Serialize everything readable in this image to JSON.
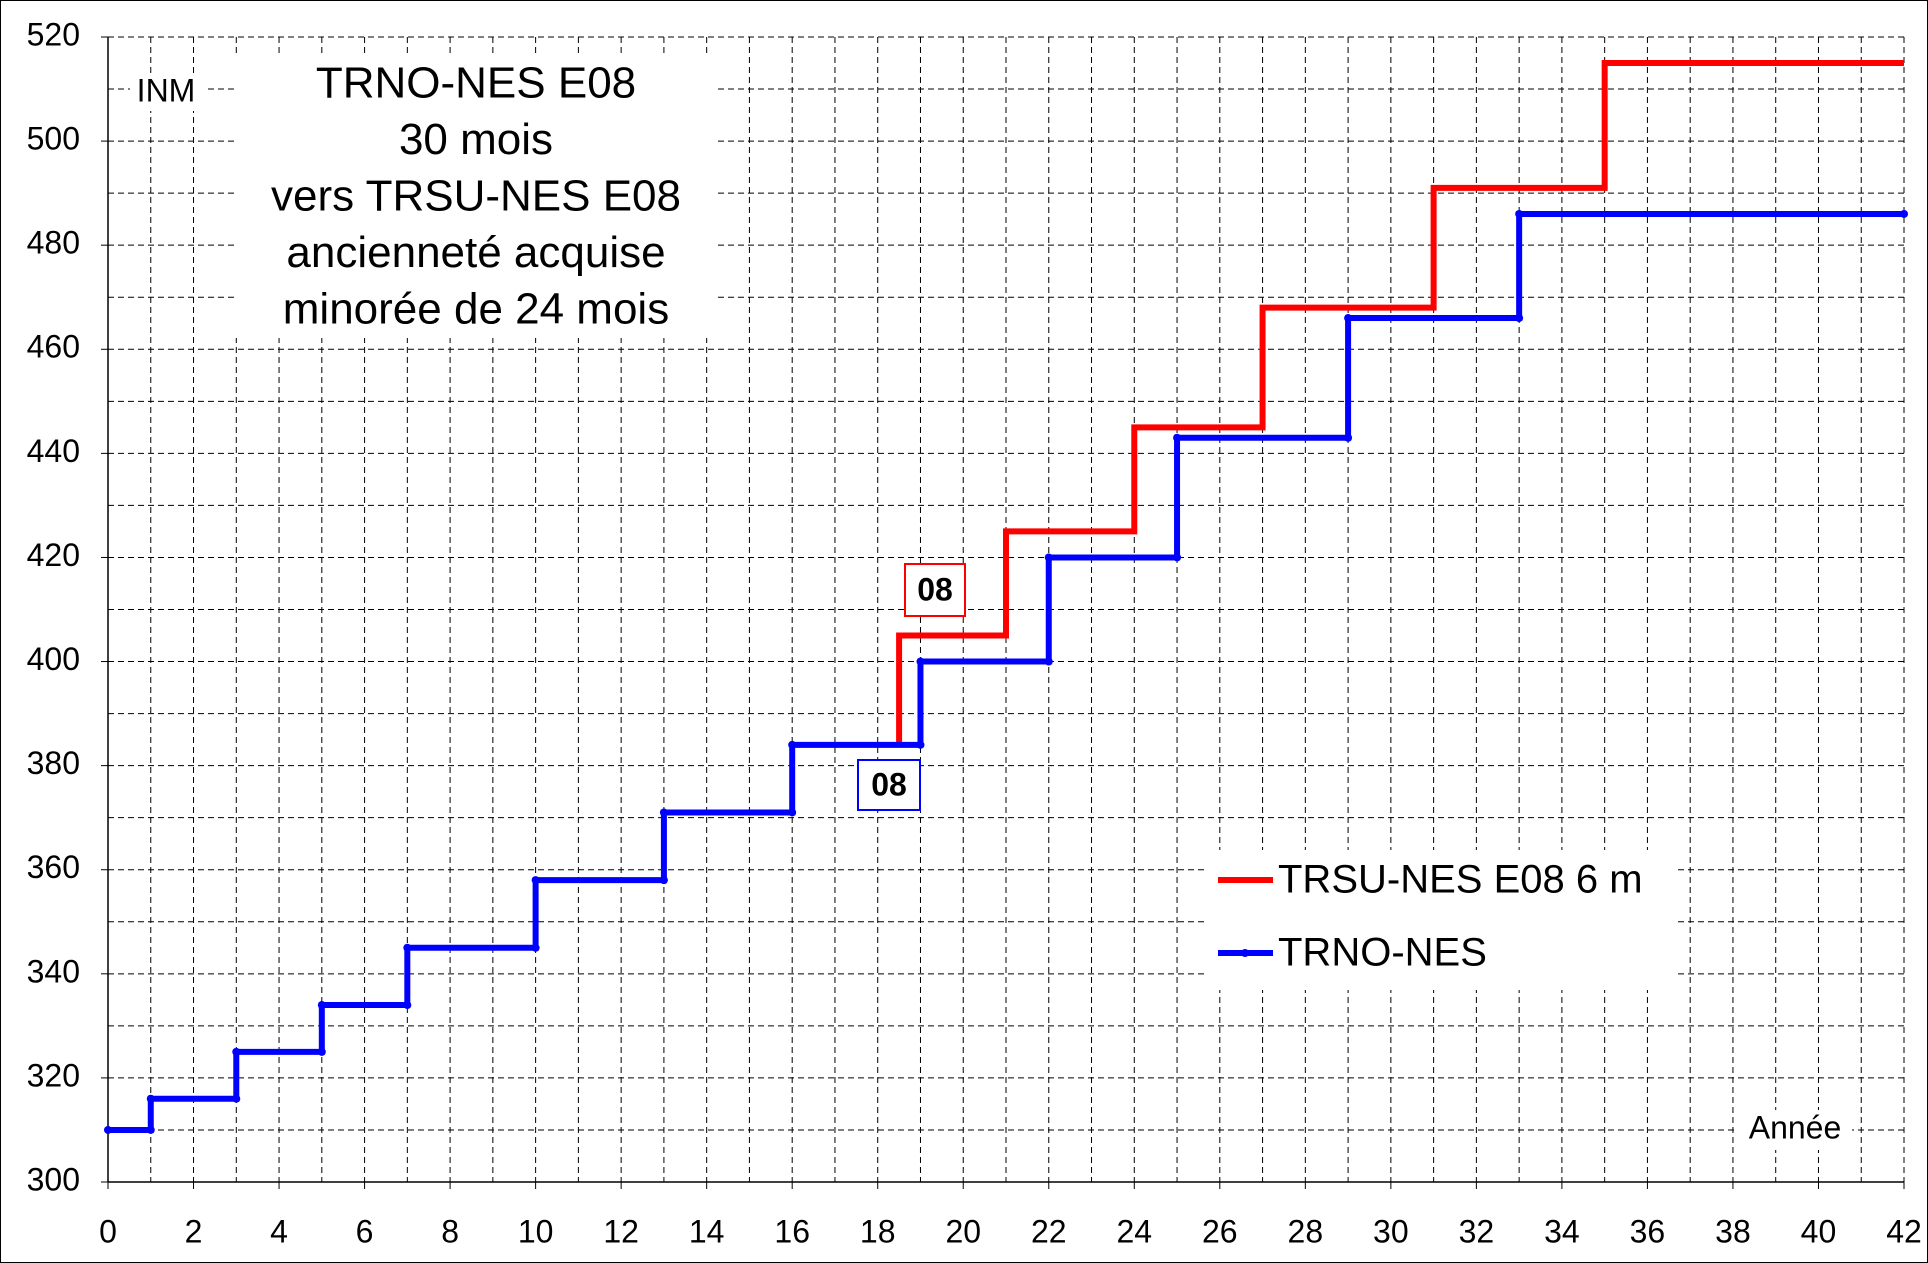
{
  "chart_data": {
    "type": "line",
    "step": true,
    "title": [
      "TRNO-NES E08",
      "30 mois",
      "vers TRSU-NES E08",
      "ancienneté acquise",
      "minorée de 24 mois"
    ],
    "ylabel": "INM",
    "xlabel": "Année",
    "annotations": [
      {
        "text": "08",
        "color": "#ff0000"
      },
      {
        "text": "08",
        "color": "#0000ff"
      }
    ],
    "series": [
      {
        "name": "TRSU-NES E08 6 m",
        "color": "#ff0000",
        "markers": false,
        "x": [
          18.5,
          18.5,
          21,
          21,
          24,
          24,
          27,
          27,
          31,
          31,
          35,
          35,
          42
        ],
        "values": [
          384,
          405,
          405,
          425,
          425,
          445,
          445,
          468,
          468,
          491,
          491,
          515,
          515
        ]
      },
      {
        "name": "TRNO-NES",
        "color": "#0000ff",
        "markers": true,
        "x": [
          0,
          1,
          1,
          3,
          3,
          5,
          5,
          7,
          7,
          10,
          10,
          13,
          13,
          16,
          16,
          19,
          19,
          22,
          22,
          25,
          25,
          29,
          29,
          33,
          33,
          42
        ],
        "values": [
          310,
          310,
          316,
          316,
          325,
          325,
          334,
          334,
          345,
          345,
          358,
          358,
          371,
          371,
          384,
          384,
          400,
          400,
          420,
          420,
          443,
          443,
          466,
          466,
          486,
          486
        ]
      }
    ],
    "xlim": [
      0,
      42
    ],
    "xticks": [
      0,
      2,
      4,
      6,
      8,
      10,
      12,
      14,
      16,
      18,
      20,
      22,
      24,
      26,
      28,
      30,
      32,
      34,
      36,
      38,
      40,
      42
    ],
    "x_minor_ticks": [
      1,
      3,
      5,
      7,
      9,
      11,
      13,
      15,
      17,
      19,
      21,
      23,
      25,
      27,
      29,
      31,
      33,
      35,
      37,
      39,
      41
    ],
    "ylim": [
      300,
      520
    ],
    "yticks": [
      300,
      320,
      340,
      360,
      380,
      400,
      420,
      440,
      460,
      480,
      500,
      520
    ],
    "y_minor_ticks": [
      310,
      330,
      350,
      370,
      390,
      410,
      430,
      450,
      470,
      490,
      510
    ],
    "grid": true,
    "legend": "right"
  }
}
